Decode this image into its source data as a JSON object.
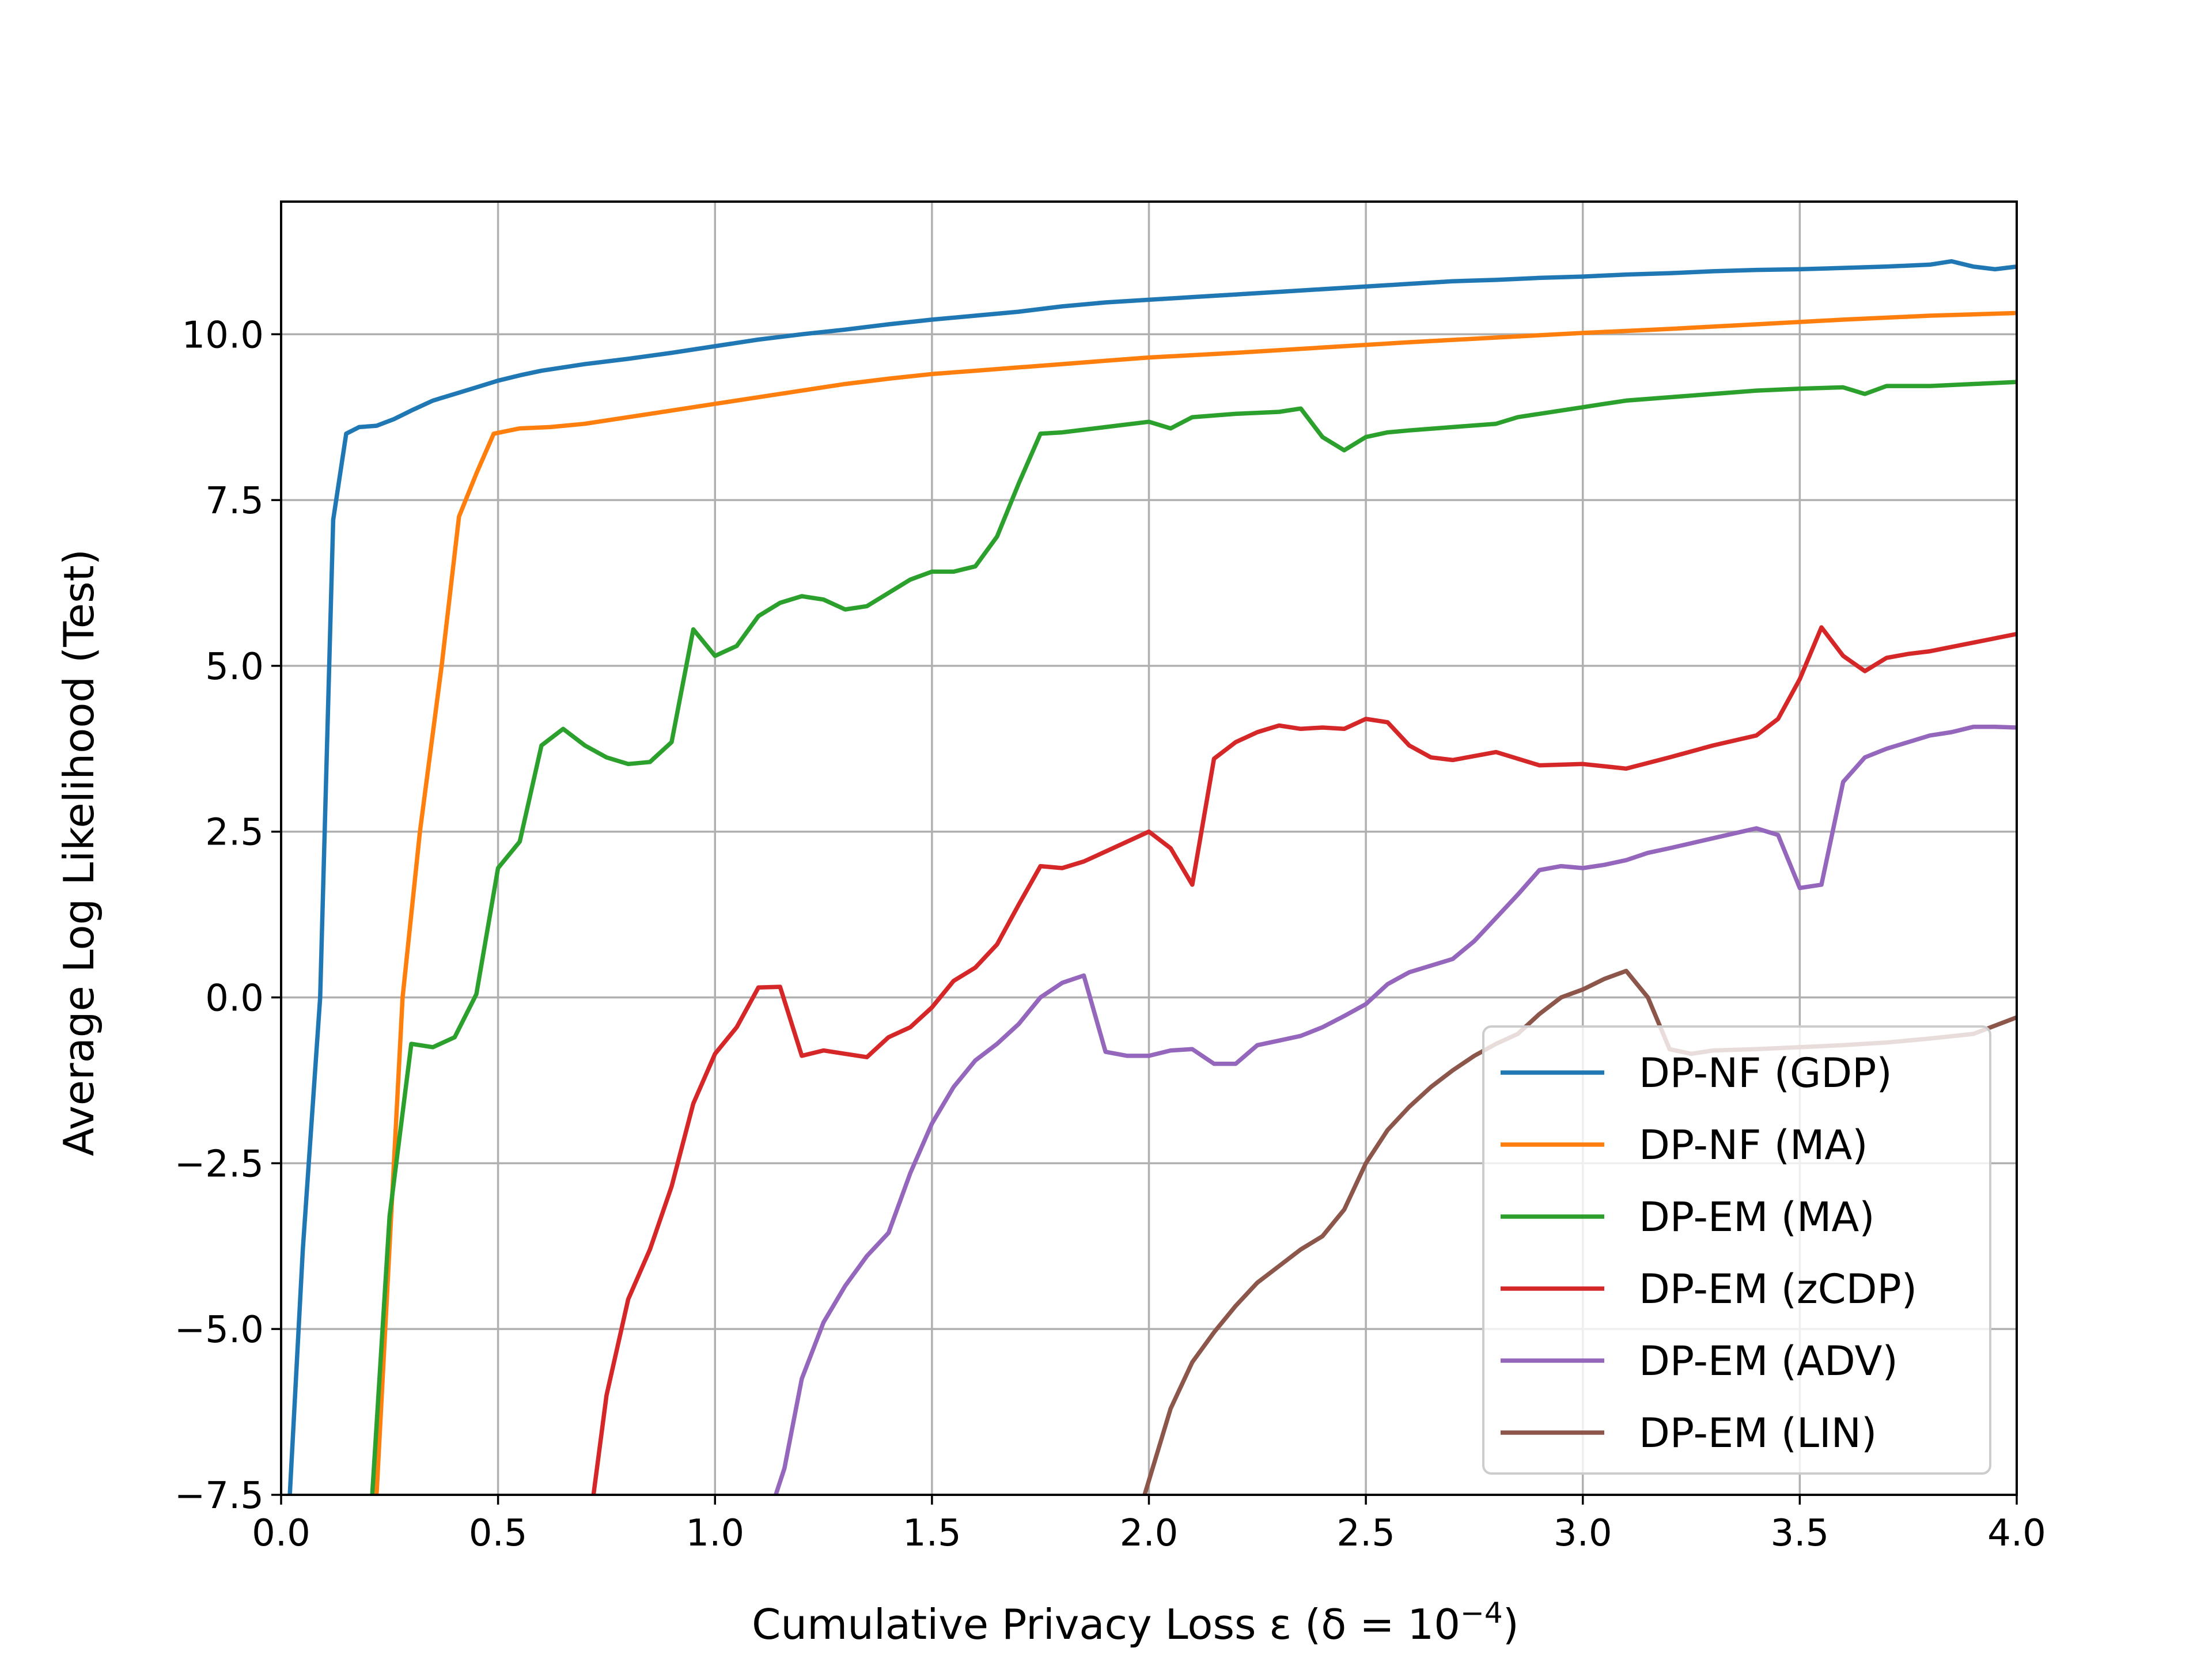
{
  "chart_data": {
    "type": "line",
    "xlabel": "Cumulative Privacy Loss ε (δ = 10",
    "xlabel_sup": "−4",
    "xlabel_close": ")",
    "ylabel": "Average Log Likelihood (Test)",
    "xlim": [
      0.0,
      4.0
    ],
    "ylim": [
      -7.5,
      12.0
    ],
    "xticks": [
      0.0,
      0.5,
      1.0,
      1.5,
      2.0,
      2.5,
      3.0,
      3.5,
      4.0
    ],
    "xtick_labels": [
      "0.0",
      "0.5",
      "1.0",
      "1.5",
      "2.0",
      "2.5",
      "3.0",
      "3.5",
      "4.0"
    ],
    "yticks": [
      -7.5,
      -5.0,
      -2.5,
      0.0,
      2.5,
      5.0,
      7.5,
      10.0
    ],
    "ytick_labels": [
      "−7.5",
      "−5.0",
      "−2.5",
      "0.0",
      "2.5",
      "5.0",
      "7.5",
      "10.0"
    ],
    "grid": true,
    "legend_position": "lower-right",
    "series": [
      {
        "name": "DP-NF (GDP)",
        "color": "#1f77b4",
        "points": [
          [
            0.02,
            -7.5
          ],
          [
            0.05,
            -3.8
          ],
          [
            0.09,
            0.0
          ],
          [
            0.12,
            7.2
          ],
          [
            0.15,
            8.5
          ],
          [
            0.18,
            8.6
          ],
          [
            0.22,
            8.62
          ],
          [
            0.26,
            8.72
          ],
          [
            0.3,
            8.85
          ],
          [
            0.35,
            9.0
          ],
          [
            0.4,
            9.1
          ],
          [
            0.45,
            9.2
          ],
          [
            0.5,
            9.3
          ],
          [
            0.55,
            9.38
          ],
          [
            0.6,
            9.45
          ],
          [
            0.7,
            9.55
          ],
          [
            0.8,
            9.63
          ],
          [
            0.9,
            9.72
          ],
          [
            1.0,
            9.82
          ],
          [
            1.1,
            9.92
          ],
          [
            1.2,
            10.0
          ],
          [
            1.3,
            10.07
          ],
          [
            1.4,
            10.15
          ],
          [
            1.5,
            10.22
          ],
          [
            1.6,
            10.28
          ],
          [
            1.7,
            10.34
          ],
          [
            1.8,
            10.42
          ],
          [
            1.9,
            10.48
          ],
          [
            2.0,
            10.52
          ],
          [
            2.1,
            10.56
          ],
          [
            2.2,
            10.6
          ],
          [
            2.3,
            10.64
          ],
          [
            2.4,
            10.68
          ],
          [
            2.5,
            10.72
          ],
          [
            2.6,
            10.76
          ],
          [
            2.7,
            10.8
          ],
          [
            2.8,
            10.82
          ],
          [
            2.9,
            10.85
          ],
          [
            3.0,
            10.87
          ],
          [
            3.1,
            10.9
          ],
          [
            3.2,
            10.92
          ],
          [
            3.3,
            10.95
          ],
          [
            3.4,
            10.97
          ],
          [
            3.5,
            10.98
          ],
          [
            3.6,
            11.0
          ],
          [
            3.7,
            11.02
          ],
          [
            3.8,
            11.05
          ],
          [
            3.85,
            11.1
          ],
          [
            3.9,
            11.02
          ],
          [
            3.95,
            10.98
          ],
          [
            4.0,
            11.02
          ]
        ]
      },
      {
        "name": "DP-NF (MA)",
        "color": "#ff7f0e",
        "points": [
          [
            0.22,
            -7.5
          ],
          [
            0.28,
            0.0
          ],
          [
            0.32,
            2.5
          ],
          [
            0.37,
            5.0
          ],
          [
            0.41,
            7.25
          ],
          [
            0.45,
            7.9
          ],
          [
            0.49,
            8.5
          ],
          [
            0.55,
            8.58
          ],
          [
            0.62,
            8.6
          ],
          [
            0.7,
            8.65
          ],
          [
            0.8,
            8.75
          ],
          [
            0.9,
            8.85
          ],
          [
            1.0,
            8.95
          ],
          [
            1.1,
            9.05
          ],
          [
            1.2,
            9.15
          ],
          [
            1.3,
            9.25
          ],
          [
            1.4,
            9.33
          ],
          [
            1.5,
            9.4
          ],
          [
            1.6,
            9.45
          ],
          [
            1.7,
            9.5
          ],
          [
            1.8,
            9.55
          ],
          [
            1.9,
            9.6
          ],
          [
            2.0,
            9.65
          ],
          [
            2.2,
            9.72
          ],
          [
            2.4,
            9.8
          ],
          [
            2.6,
            9.88
          ],
          [
            2.8,
            9.95
          ],
          [
            3.0,
            10.02
          ],
          [
            3.2,
            10.08
          ],
          [
            3.4,
            10.15
          ],
          [
            3.6,
            10.22
          ],
          [
            3.8,
            10.28
          ],
          [
            4.0,
            10.32
          ]
        ]
      },
      {
        "name": "DP-EM (MA)",
        "color": "#2ca02c",
        "points": [
          [
            0.21,
            -7.5
          ],
          [
            0.25,
            -3.3
          ],
          [
            0.3,
            -0.7
          ],
          [
            0.35,
            -0.75
          ],
          [
            0.4,
            -0.6
          ],
          [
            0.45,
            0.05
          ],
          [
            0.5,
            1.95
          ],
          [
            0.55,
            2.35
          ],
          [
            0.6,
            3.8
          ],
          [
            0.65,
            4.05
          ],
          [
            0.7,
            3.8
          ],
          [
            0.75,
            3.62
          ],
          [
            0.8,
            3.52
          ],
          [
            0.85,
            3.55
          ],
          [
            0.9,
            3.85
          ],
          [
            0.95,
            5.55
          ],
          [
            1.0,
            5.15
          ],
          [
            1.05,
            5.3
          ],
          [
            1.1,
            5.75
          ],
          [
            1.15,
            5.95
          ],
          [
            1.2,
            6.05
          ],
          [
            1.25,
            6.0
          ],
          [
            1.3,
            5.85
          ],
          [
            1.35,
            5.9
          ],
          [
            1.4,
            6.1
          ],
          [
            1.45,
            6.3
          ],
          [
            1.5,
            6.42
          ],
          [
            1.55,
            6.42
          ],
          [
            1.6,
            6.5
          ],
          [
            1.65,
            6.95
          ],
          [
            1.7,
            7.75
          ],
          [
            1.75,
            8.5
          ],
          [
            1.8,
            8.52
          ],
          [
            1.85,
            8.56
          ],
          [
            1.9,
            8.6
          ],
          [
            2.0,
            8.68
          ],
          [
            2.05,
            8.58
          ],
          [
            2.1,
            8.75
          ],
          [
            2.2,
            8.8
          ],
          [
            2.3,
            8.83
          ],
          [
            2.35,
            8.88
          ],
          [
            2.4,
            8.45
          ],
          [
            2.45,
            8.25
          ],
          [
            2.5,
            8.45
          ],
          [
            2.55,
            8.52
          ],
          [
            2.6,
            8.55
          ],
          [
            2.7,
            8.6
          ],
          [
            2.8,
            8.65
          ],
          [
            2.85,
            8.75
          ],
          [
            2.9,
            8.8
          ],
          [
            3.0,
            8.9
          ],
          [
            3.05,
            8.95
          ],
          [
            3.1,
            9.0
          ],
          [
            3.2,
            9.05
          ],
          [
            3.3,
            9.1
          ],
          [
            3.4,
            9.15
          ],
          [
            3.5,
            9.18
          ],
          [
            3.6,
            9.2
          ],
          [
            3.65,
            9.1
          ],
          [
            3.7,
            9.22
          ],
          [
            3.8,
            9.22
          ],
          [
            3.9,
            9.25
          ],
          [
            4.0,
            9.28
          ]
        ]
      },
      {
        "name": "DP-EM (zCDP)",
        "color": "#d62728",
        "points": [
          [
            0.72,
            -7.5
          ],
          [
            0.75,
            -6.0
          ],
          [
            0.8,
            -4.55
          ],
          [
            0.85,
            -3.8
          ],
          [
            0.9,
            -2.85
          ],
          [
            0.95,
            -1.6
          ],
          [
            1.0,
            -0.85
          ],
          [
            1.05,
            -0.45
          ],
          [
            1.1,
            0.15
          ],
          [
            1.15,
            0.16
          ],
          [
            1.2,
            -0.88
          ],
          [
            1.25,
            -0.8
          ],
          [
            1.3,
            -0.85
          ],
          [
            1.35,
            -0.9
          ],
          [
            1.4,
            -0.6
          ],
          [
            1.45,
            -0.45
          ],
          [
            1.5,
            -0.15
          ],
          [
            1.55,
            0.25
          ],
          [
            1.6,
            0.45
          ],
          [
            1.65,
            0.8
          ],
          [
            1.7,
            1.4
          ],
          [
            1.75,
            1.98
          ],
          [
            1.8,
            1.95
          ],
          [
            1.85,
            2.05
          ],
          [
            1.9,
            2.2
          ],
          [
            2.0,
            2.5
          ],
          [
            2.05,
            2.25
          ],
          [
            2.1,
            1.7
          ],
          [
            2.15,
            3.6
          ],
          [
            2.2,
            3.85
          ],
          [
            2.25,
            4.0
          ],
          [
            2.3,
            4.1
          ],
          [
            2.35,
            4.05
          ],
          [
            2.4,
            4.07
          ],
          [
            2.45,
            4.05
          ],
          [
            2.5,
            4.2
          ],
          [
            2.55,
            4.15
          ],
          [
            2.6,
            3.8
          ],
          [
            2.65,
            3.62
          ],
          [
            2.7,
            3.58
          ],
          [
            2.8,
            3.7
          ],
          [
            2.9,
            3.5
          ],
          [
            3.0,
            3.52
          ],
          [
            3.1,
            3.45
          ],
          [
            3.2,
            3.62
          ],
          [
            3.3,
            3.8
          ],
          [
            3.4,
            3.95
          ],
          [
            3.45,
            4.2
          ],
          [
            3.5,
            4.8
          ],
          [
            3.55,
            5.58
          ],
          [
            3.6,
            5.15
          ],
          [
            3.65,
            4.92
          ],
          [
            3.7,
            5.12
          ],
          [
            3.75,
            5.18
          ],
          [
            3.8,
            5.22
          ],
          [
            3.9,
            5.35
          ],
          [
            4.0,
            5.48
          ]
        ]
      },
      {
        "name": "DP-EM (ADV)",
        "color": "#9467bd",
        "points": [
          [
            1.14,
            -7.5
          ],
          [
            1.16,
            -7.1
          ],
          [
            1.2,
            -5.75
          ],
          [
            1.25,
            -4.9
          ],
          [
            1.3,
            -4.35
          ],
          [
            1.35,
            -3.9
          ],
          [
            1.4,
            -3.55
          ],
          [
            1.45,
            -2.65
          ],
          [
            1.5,
            -1.9
          ],
          [
            1.55,
            -1.35
          ],
          [
            1.6,
            -0.95
          ],
          [
            1.65,
            -0.7
          ],
          [
            1.7,
            -0.4
          ],
          [
            1.75,
            0.0
          ],
          [
            1.8,
            0.22
          ],
          [
            1.85,
            0.33
          ],
          [
            1.9,
            -0.82
          ],
          [
            1.95,
            -0.88
          ],
          [
            2.0,
            -0.88
          ],
          [
            2.05,
            -0.8
          ],
          [
            2.1,
            -0.78
          ],
          [
            2.15,
            -1.0
          ],
          [
            2.2,
            -1.0
          ],
          [
            2.25,
            -0.72
          ],
          [
            2.3,
            -0.65
          ],
          [
            2.35,
            -0.58
          ],
          [
            2.4,
            -0.45
          ],
          [
            2.45,
            -0.28
          ],
          [
            2.5,
            -0.1
          ],
          [
            2.55,
            0.2
          ],
          [
            2.6,
            0.38
          ],
          [
            2.65,
            0.48
          ],
          [
            2.7,
            0.58
          ],
          [
            2.75,
            0.85
          ],
          [
            2.8,
            1.2
          ],
          [
            2.85,
            1.55
          ],
          [
            2.9,
            1.92
          ],
          [
            2.95,
            1.98
          ],
          [
            3.0,
            1.95
          ],
          [
            3.05,
            2.0
          ],
          [
            3.1,
            2.07
          ],
          [
            3.15,
            2.18
          ],
          [
            3.2,
            2.25
          ],
          [
            3.3,
            2.4
          ],
          [
            3.4,
            2.55
          ],
          [
            3.45,
            2.45
          ],
          [
            3.5,
            1.65
          ],
          [
            3.55,
            1.7
          ],
          [
            3.6,
            3.25
          ],
          [
            3.65,
            3.62
          ],
          [
            3.7,
            3.75
          ],
          [
            3.75,
            3.85
          ],
          [
            3.8,
            3.95
          ],
          [
            3.85,
            4.0
          ],
          [
            3.9,
            4.08
          ],
          [
            3.95,
            4.08
          ],
          [
            4.0,
            4.07
          ]
        ]
      },
      {
        "name": "DP-EM (LIN)",
        "color": "#8c564b",
        "points": [
          [
            1.99,
            -7.5
          ],
          [
            2.05,
            -6.2
          ],
          [
            2.1,
            -5.5
          ],
          [
            2.15,
            -5.05
          ],
          [
            2.2,
            -4.65
          ],
          [
            2.25,
            -4.3
          ],
          [
            2.3,
            -4.05
          ],
          [
            2.35,
            -3.8
          ],
          [
            2.4,
            -3.6
          ],
          [
            2.45,
            -3.2
          ],
          [
            2.5,
            -2.5
          ],
          [
            2.55,
            -2.0
          ],
          [
            2.6,
            -1.65
          ],
          [
            2.65,
            -1.35
          ],
          [
            2.7,
            -1.1
          ],
          [
            2.75,
            -0.88
          ],
          [
            2.8,
            -0.7
          ],
          [
            2.85,
            -0.55
          ],
          [
            2.9,
            -0.25
          ],
          [
            2.95,
            0.0
          ],
          [
            3.0,
            0.12
          ],
          [
            3.05,
            0.28
          ],
          [
            3.1,
            0.4
          ],
          [
            3.15,
            0.0
          ],
          [
            3.2,
            -0.78
          ],
          [
            3.25,
            -0.85
          ],
          [
            3.3,
            -0.8
          ],
          [
            3.4,
            -0.78
          ],
          [
            3.5,
            -0.75
          ],
          [
            3.6,
            -0.72
          ],
          [
            3.7,
            -0.68
          ],
          [
            3.8,
            -0.62
          ],
          [
            3.9,
            -0.55
          ],
          [
            4.0,
            -0.3
          ]
        ]
      }
    ]
  }
}
